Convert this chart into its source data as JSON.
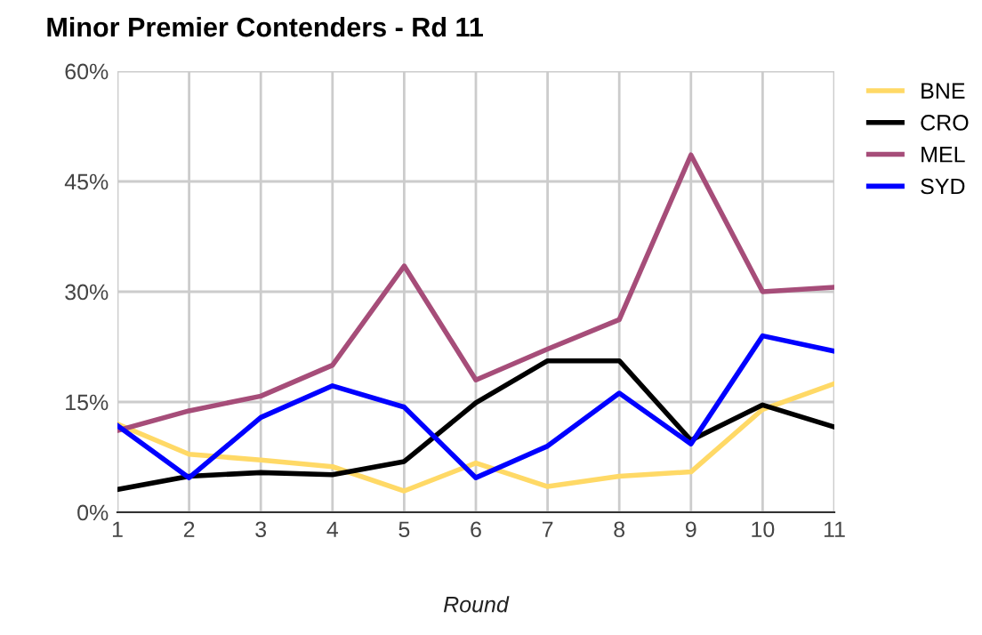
{
  "chart_data": {
    "type": "line",
    "title": "Minor Premier Contenders - Rd 11",
    "xlabel": "Round",
    "x": [
      1,
      2,
      3,
      4,
      5,
      6,
      7,
      8,
      9,
      10,
      11
    ],
    "xlim": [
      1,
      11
    ],
    "xticks": [
      1,
      2,
      3,
      4,
      5,
      6,
      7,
      8,
      9,
      10,
      11
    ],
    "ylim": [
      0,
      60
    ],
    "yticks": [
      {
        "value": 0,
        "label": "0%"
      },
      {
        "value": 15,
        "label": "15%"
      },
      {
        "value": 30,
        "label": "30%"
      },
      {
        "value": 45,
        "label": "45%"
      },
      {
        "value": 60,
        "label": "60%"
      }
    ],
    "grid": true,
    "legend": "top right",
    "marker": "none",
    "line_style": "solid",
    "series": [
      {
        "name": "BNE",
        "color": "#ffd966",
        "values": [
          12.0,
          7.9,
          7.1,
          6.2,
          2.9,
          6.7,
          3.5,
          4.9,
          5.5,
          14.0,
          17.5
        ]
      },
      {
        "name": "CRO",
        "color": "#000000",
        "values": [
          3.1,
          4.9,
          5.4,
          5.1,
          6.9,
          14.9,
          20.6,
          20.6,
          9.8,
          14.6,
          11.6
        ]
      },
      {
        "name": "MEL",
        "color": "#a64d79",
        "values": [
          11.1,
          13.8,
          15.8,
          20.0,
          33.5,
          18.0,
          22.2,
          26.2,
          48.6,
          30.0,
          30.6
        ]
      },
      {
        "name": "SYD",
        "color": "#0000ff",
        "values": [
          11.8,
          4.7,
          12.9,
          17.2,
          14.3,
          4.7,
          9.0,
          16.2,
          9.3,
          24.0,
          21.9
        ]
      }
    ]
  }
}
